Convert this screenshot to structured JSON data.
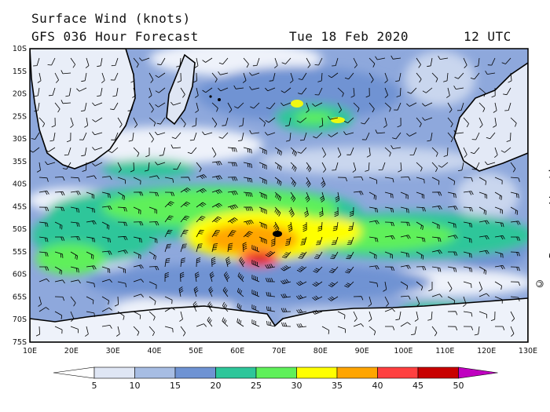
{
  "header": {
    "title": "Surface Wind (knots)",
    "forecast": "GFS 036 Hour Forecast",
    "date": "Tue 18 Feb 2020",
    "time": "12 UTC"
  },
  "credit": "© www.PassageWeather.com",
  "map": {
    "lat_labels": [
      "10S",
      "15S",
      "20S",
      "25S",
      "30S",
      "35S",
      "40S",
      "45S",
      "50S",
      "55S",
      "60S",
      "65S",
      "70S",
      "75S"
    ],
    "lon_labels": [
      "10E",
      "20E",
      "30E",
      "40E",
      "50E",
      "60E",
      "70E",
      "80E",
      "90E",
      "100E",
      "110E",
      "120E",
      "130E"
    ]
  },
  "colorbar": {
    "labels": [
      "5",
      "10",
      "15",
      "20",
      "25",
      "30",
      "35",
      "40",
      "45",
      "50"
    ],
    "colors": [
      "#ffffff",
      "#dfe6f4",
      "#a7bde3",
      "#6f93d3",
      "#2ec69a",
      "#5ff05a",
      "#ffff00",
      "#ffa500",
      "#ff4040",
      "#c80000",
      "#c000c0"
    ]
  },
  "palette": {
    "calm": "#eef2fa",
    "light": "#c9d6ee",
    "moderate": "#8ea8dc",
    "fresh": "#6f93d3",
    "teal": "#2ec69a",
    "green": "#5ff05a",
    "yellow": "#ffff00",
    "orange": "#ffa500",
    "red": "#ff4040",
    "darkred": "#c80000",
    "land": "#ffffff",
    "coast": "#000000"
  }
}
